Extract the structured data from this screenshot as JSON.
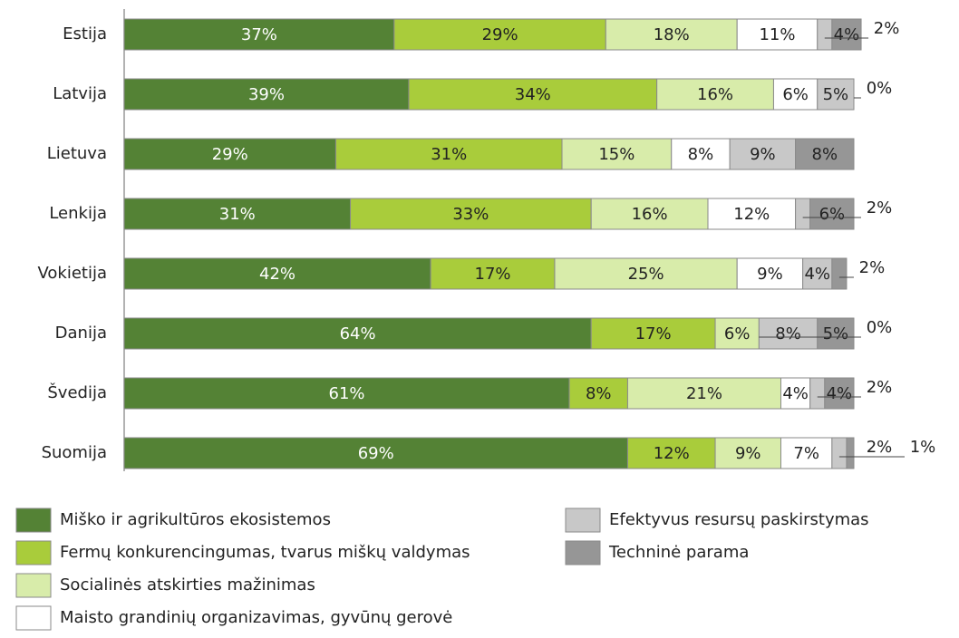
{
  "chart_data": {
    "type": "stacked_bar_horizontal",
    "categories": [
      "Estija",
      "Latvija",
      "Lietuva",
      "Lenkija",
      "Vokietija",
      "Danija",
      "Švedija",
      "Suomija"
    ],
    "xlim": [
      0,
      100
    ],
    "series": [
      {
        "name": "Miško ir agrikultūros ekosistemos",
        "color": "#548235",
        "values": [
          37,
          39,
          29,
          31,
          42,
          64,
          61,
          69
        ],
        "value_labels": [
          "37%",
          "39%",
          "29%",
          "31%",
          "42%",
          "64%",
          "61%",
          "69%"
        ]
      },
      {
        "name": "Fermų konkurencingumas, tvarus miškų valdymas",
        "color": "#a9cc3b",
        "values": [
          29,
          34,
          31,
          33,
          17,
          17,
          8,
          12
        ],
        "value_labels": [
          "29%",
          "34%",
          "31%",
          "33%",
          "17%",
          "17%",
          "8%",
          "12%"
        ]
      },
      {
        "name": "Socialinės atskirties mažinimas",
        "color": "#d8ecaa",
        "values": [
          18,
          16,
          15,
          16,
          25,
          6,
          21,
          9
        ],
        "value_labels": [
          "18%",
          "16%",
          "15%",
          "16%",
          "25%",
          "6%",
          "21%",
          "9%"
        ]
      },
      {
        "name": "Maisto grandinių organizavimas, gyvūnų gerovė",
        "color": "#ffffff",
        "values": [
          11,
          6,
          8,
          12,
          9,
          0,
          4,
          7
        ],
        "value_labels": [
          "11%",
          "6%",
          "8%",
          "12%",
          "9%",
          "0%",
          "4%",
          "7%"
        ]
      },
      {
        "name": "Efektyvus resursų paskirstymas",
        "color": "#c8c8c8",
        "values": [
          2,
          5,
          9,
          2,
          4,
          8,
          2,
          2
        ],
        "value_labels": [
          "2%",
          "5%",
          "9%",
          "2%",
          "4%",
          "8%",
          "2%",
          "2%"
        ]
      },
      {
        "name": "Techninė parama",
        "color": "#969696",
        "values": [
          4,
          0,
          8,
          6,
          2,
          5,
          4,
          1
        ],
        "value_labels": [
          "4%",
          "0%",
          "8%",
          "6%",
          "2%",
          "5%",
          "4%",
          "1%"
        ]
      }
    ]
  }
}
